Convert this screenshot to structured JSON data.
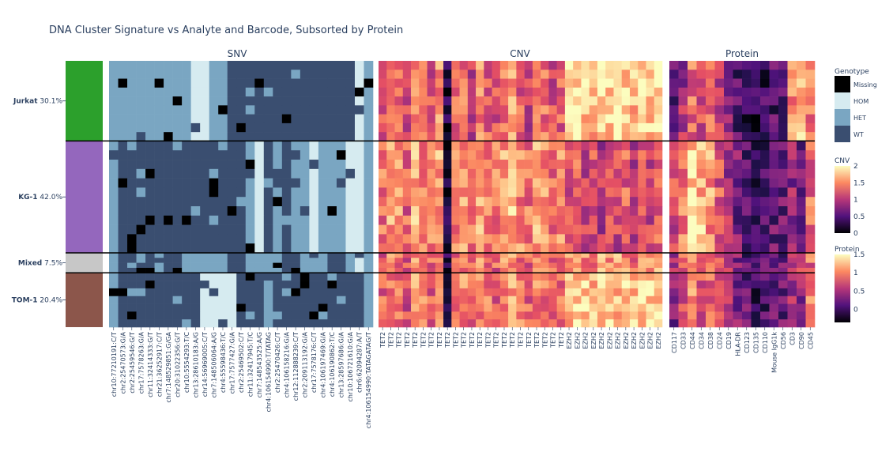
{
  "chart_data": {
    "type": "heatmap",
    "title": "DNA Cluster Signature vs Analyte and Barcode, Subsorted by Protein",
    "clusters": [
      {
        "name": "Jurkat",
        "pct": "30.1%",
        "fraction": 0.301,
        "color": "#2ca02c"
      },
      {
        "name": "KG-1",
        "pct": "42.0%",
        "fraction": 0.42,
        "color": "#9467bd"
      },
      {
        "name": "Mixed",
        "pct": "7.5%",
        "fraction": 0.075,
        "color": "#c7c7c7"
      },
      {
        "name": "TOM-1",
        "pct": "20.4%",
        "fraction": 0.204,
        "color": "#8c564b"
      }
    ],
    "panels": [
      {
        "name": "SNV",
        "columns": [
          "chr10:77210191:C/T",
          "chr2:25470573:G/A",
          "chr2:25459546:G/T",
          "chr17:7578263:G/A",
          "chr11:32414333:G/T",
          "chr21:36252917:C/T",
          "chr7:148529851:G/GA",
          "chr20:31022356:G/T",
          "chr10:5554293:T/C",
          "chr13:28610183:A/G",
          "chr14:56969005:C/T",
          "chr7:148506064:A/G",
          "chr4:55598436:T/C",
          "chr17:7577427:G/A",
          "chr2:25469502:C/T",
          "chr11:32417945:T/C",
          "chr7:148543525:A/G",
          "chr4:106154990:T/TATAG",
          "chr2:25470426:C/T",
          "chr4:106158216:G/A",
          "chr12:112888239:C/T",
          "chr2:209113192:G/A",
          "chr17:7578176:C/T",
          "chr4:106197469:G/A",
          "chr4:106190862:T/C",
          "chr13:28597686:G/A",
          "chr10:106721610:G/A",
          "chr6:62094287:A/T",
          "chr4:106154990:TATAGATAG/T"
        ],
        "cluster_levels": [
          [
            2,
            2,
            2,
            2,
            2,
            2,
            2,
            2,
            2,
            1,
            1,
            2,
            2,
            3,
            3,
            3,
            3,
            3,
            3,
            3,
            3,
            3,
            3,
            3,
            3,
            3,
            3,
            1,
            2
          ],
          [
            2,
            3,
            3,
            3,
            3,
            3,
            3,
            3,
            3,
            3,
            3,
            3,
            3,
            3,
            3,
            2,
            1,
            3,
            2,
            3,
            2,
            2,
            1,
            2,
            2,
            2,
            1,
            1,
            2
          ],
          [
            2,
            3,
            3,
            2,
            3,
            2,
            3,
            3,
            2,
            2,
            2,
            2,
            2,
            3,
            3,
            2,
            2,
            2,
            2,
            3,
            3,
            2,
            2,
            2,
            3,
            3,
            2,
            1,
            2
          ],
          [
            2,
            3,
            3,
            3,
            3,
            3,
            3,
            3,
            3,
            3,
            1,
            1,
            1,
            1,
            3,
            3,
            3,
            2,
            3,
            3,
            3,
            3,
            3,
            3,
            3,
            3,
            3,
            3,
            2
          ]
        ]
      },
      {
        "name": "CNV",
        "columns": [
          "TET2",
          "TET2",
          "TET2",
          "TET2",
          "TET2",
          "TET2",
          "TET2",
          "TET2",
          "TET2",
          "TET2",
          "TET2",
          "TET2",
          "TET2",
          "TET2",
          "TET2",
          "TET2",
          "TET2",
          "TET2",
          "TET2",
          "TET2",
          "TET2",
          "TET2",
          "TET2",
          "EZH2",
          "EZH2",
          "EZH2",
          "EZH2",
          "EZH2",
          "EZH2",
          "EZH2",
          "EZH2",
          "EZH2",
          "EZH2",
          "EZH2",
          "EZH2"
        ],
        "cluster_levels": [
          [
            1.2,
            1.5,
            1.3,
            1.1,
            1.6,
            1.4,
            1.2,
            1.5,
            0.2,
            1.3,
            1.4,
            1.1,
            1.5,
            1.3,
            1.2,
            1.4,
            1.6,
            1.3,
            1.1,
            1.5,
            1.4,
            1.2,
            1.3,
            1.8,
            1.9,
            1.8,
            1.7,
            1.9,
            1.8,
            1.9,
            1.8,
            1.7,
            1.9,
            1.8,
            1.9
          ],
          [
            1.4,
            1.6,
            1.5,
            1.3,
            1.7,
            1.5,
            1.4,
            1.6,
            0.3,
            1.5,
            1.6,
            1.4,
            1.6,
            1.5,
            1.4,
            1.6,
            1.7,
            1.5,
            1.4,
            1.6,
            1.5,
            1.4,
            1.5,
            1.2,
            1.3,
            1.1,
            1.2,
            1.0,
            1.2,
            1.1,
            1.3,
            1.0,
            1.2,
            1.1,
            1.3
          ],
          [
            1.3,
            1.5,
            1.4,
            1.2,
            1.6,
            1.4,
            1.3,
            1.5,
            0.3,
            1.4,
            1.5,
            1.3,
            1.5,
            1.4,
            1.3,
            1.5,
            1.6,
            1.4,
            1.3,
            1.5,
            1.4,
            1.3,
            1.4,
            1.5,
            1.6,
            1.5,
            1.4,
            1.6,
            1.5,
            1.6,
            1.5,
            1.4,
            1.6,
            1.5,
            1.6
          ],
          [
            1.3,
            1.5,
            1.4,
            1.2,
            1.6,
            1.4,
            1.3,
            1.5,
            0.3,
            1.4,
            1.5,
            1.3,
            1.5,
            1.4,
            1.3,
            1.5,
            1.6,
            1.4,
            1.3,
            1.5,
            1.4,
            1.3,
            1.4,
            1.7,
            1.8,
            1.8,
            1.7,
            1.8,
            1.8,
            1.7,
            1.8,
            1.7,
            1.8,
            1.8,
            1.8
          ]
        ]
      },
      {
        "name": "Protein",
        "columns": [
          "CD117",
          "CD33",
          "CD44",
          "CD34",
          "CD38",
          "CD24",
          "CD19",
          "HLA-DR",
          "CD123",
          "CD135",
          "CD110",
          "Mouse IgG1k",
          "CD56",
          "CD3",
          "CD90",
          "CD45"
        ],
        "cluster_levels": [
          [
            0.2,
            0.5,
            0.9,
            0.7,
            0.9,
            0.6,
            0.4,
            0.1,
            0.0,
            -0.1,
            0.0,
            0.1,
            0.2,
            1.1,
            1.2,
            0.9
          ],
          [
            0.7,
            1.0,
            1.3,
            1.2,
            1.1,
            0.8,
            0.5,
            0.3,
            0.1,
            0.0,
            0.1,
            0.2,
            0.2,
            0.4,
            0.3,
            0.9
          ],
          [
            0.5,
            0.8,
            1.2,
            0.9,
            1.0,
            0.7,
            0.5,
            0.3,
            0.1,
            0.0,
            0.1,
            0.2,
            0.2,
            0.6,
            0.6,
            0.9
          ],
          [
            0.3,
            0.7,
            1.0,
            0.8,
            0.9,
            0.7,
            0.5,
            0.3,
            0.2,
            0.0,
            0.1,
            0.2,
            0.2,
            0.5,
            0.4,
            1.0
          ]
        ]
      }
    ],
    "genotype_legend": {
      "title": "Genotype",
      "items": [
        {
          "label": "Missing",
          "color": "#000000"
        },
        {
          "label": "HOM",
          "color": "#d6ebf0"
        },
        {
          "label": "HET",
          "color": "#7aa6c2"
        },
        {
          "label": "WT",
          "color": "#3a4e70"
        }
      ]
    },
    "colorbars": [
      {
        "title": "CNV",
        "range": [
          0,
          2
        ],
        "ticks": [
          "2",
          "1.5",
          "1",
          "0.5",
          "0"
        ],
        "tick_values": [
          2,
          1.5,
          1,
          0.5,
          0
        ]
      },
      {
        "title": "Protein",
        "range": [
          -0.35,
          1.5
        ],
        "ticks": [
          "1.5",
          "1",
          "0.5",
          "0"
        ],
        "tick_values": [
          1.5,
          1,
          0.5,
          0
        ]
      }
    ]
  }
}
